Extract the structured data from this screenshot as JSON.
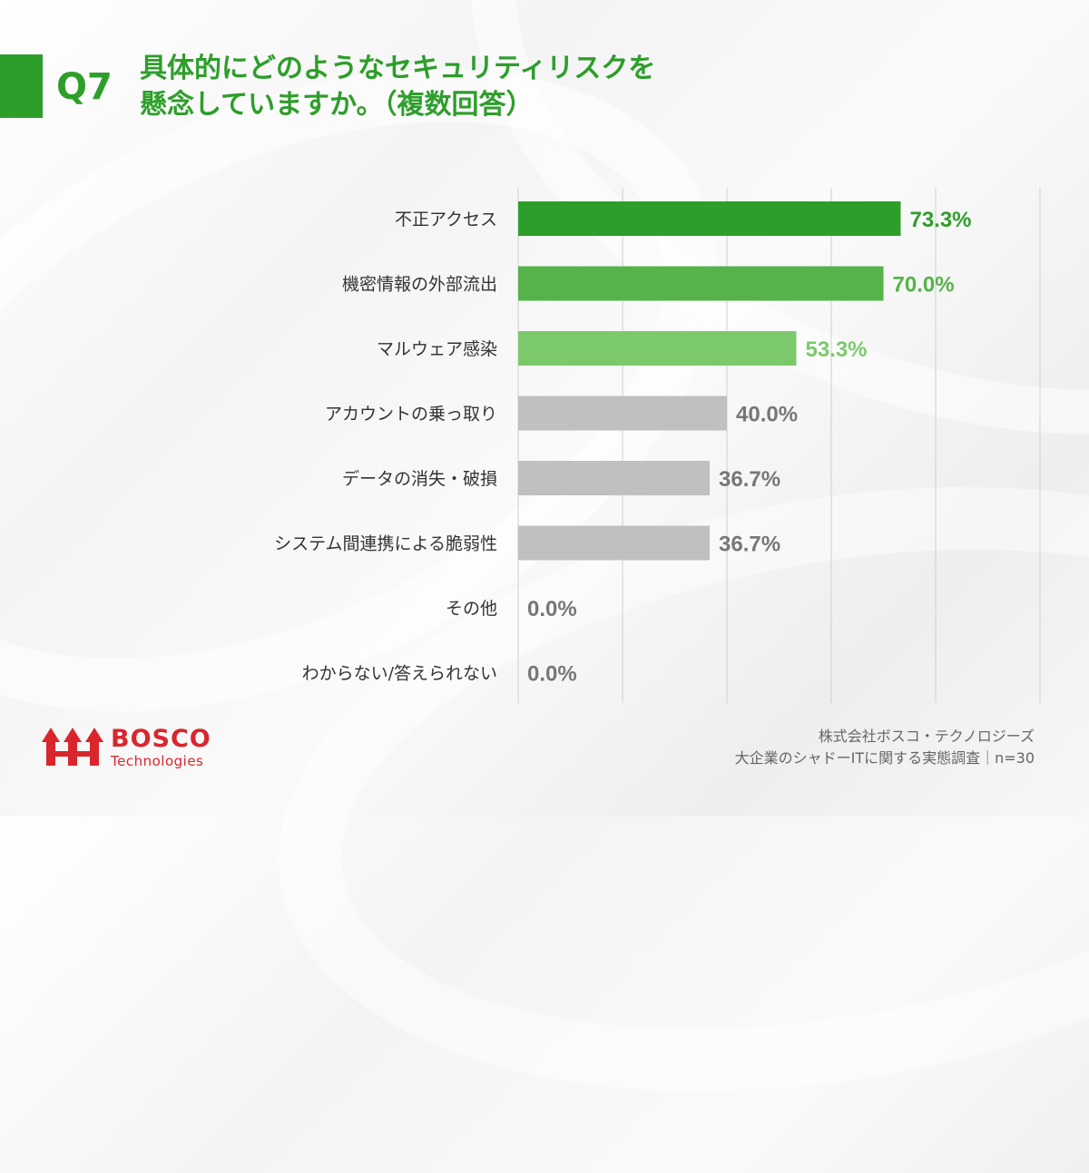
{
  "question": {
    "number": "Q7",
    "title_line1": "具体的にどのようなセキュリティリスクを",
    "title_line2": "懸念していますか。（複数回答）"
  },
  "chart_data": {
    "type": "bar",
    "orientation": "horizontal",
    "categories": [
      "不正アクセス",
      "機密情報の外部流出",
      "マルウェア感染",
      "アカウントの乗っ取り",
      "データの消失・破損",
      "システム間連携による脆弱性",
      "その他",
      "わからない/答えられない"
    ],
    "values": [
      73.3,
      70.0,
      53.3,
      40.0,
      36.7,
      36.7,
      0.0,
      0.0
    ],
    "value_labels": [
      "73.3%",
      "70.0%",
      "53.3%",
      "40.0%",
      "36.7%",
      "36.7%",
      "0.0%",
      "0.0%"
    ],
    "bar_colors": [
      "#2e9e2b",
      "#56b34a",
      "#7cc96c",
      "#c0bfc1",
      "#c0bfc1",
      "#c0bfc1",
      "#c0bfc1",
      "#c0bfc1"
    ],
    "label_colors": [
      "#2e9e2b",
      "#56b34a",
      "#7cc96c",
      "#777777",
      "#777777",
      "#777777",
      "#777777",
      "#777777"
    ],
    "xlim": [
      0,
      100
    ],
    "grid": true
  },
  "logo": {
    "name": "BOSCO",
    "sub": "Technologies",
    "color": "#d9262c"
  },
  "footer": {
    "company": "株式会社ボスコ・テクノロジーズ",
    "survey": "大企業のシャドーITに関する実態調査｜n=30"
  },
  "colors": {
    "accent": "#2e9e2b"
  }
}
